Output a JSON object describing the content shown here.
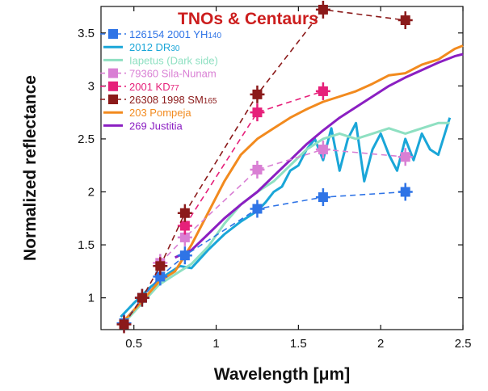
{
  "chart_data": {
    "type": "line",
    "title": "TNOs & Centaurs",
    "xlabel": "Wavelength [μm]",
    "ylabel": "Normalized reflectance",
    "xlim": [
      0.3,
      2.5
    ],
    "ylim": [
      0.7,
      3.75
    ],
    "xticks": [
      0.5,
      1,
      1.5,
      2,
      2.5
    ],
    "xtick_labels": [
      "0.5",
      "1",
      "1.5",
      "2",
      "2.5"
    ],
    "yticks": [
      1,
      1.5,
      2,
      2.5,
      3,
      3.5
    ],
    "ytick_labels": [
      "1",
      "1.5",
      "2",
      "2.5",
      "3",
      "3.5"
    ],
    "grid": false,
    "legend_position": "top-left",
    "series": [
      {
        "name": "126154 2001 YH140",
        "legend_main": "126154 2001 YH",
        "legend_sub": "140",
        "kind": "points",
        "marker": "square",
        "color": "#2f74e6",
        "dashed": true,
        "x": [
          0.44,
          0.55,
          0.66,
          0.81,
          1.25,
          1.65,
          2.15
        ],
        "y": [
          0.76,
          1.0,
          1.2,
          1.4,
          1.84,
          1.95,
          2.0
        ]
      },
      {
        "name": "2012 DR30",
        "legend_main": "2012 DR",
        "legend_sub": "30",
        "kind": "line",
        "color": "#1aa6d8",
        "dashed": false,
        "x": [
          0.42,
          0.5,
          0.6,
          0.7,
          0.78,
          0.85,
          0.95,
          1.05,
          1.15,
          1.25,
          1.3,
          1.35,
          1.4,
          1.45,
          1.5,
          1.55,
          1.6,
          1.65,
          1.7,
          1.75,
          1.8,
          1.85,
          1.9,
          1.95,
          2.0,
          2.05,
          2.1,
          2.15,
          2.2,
          2.25,
          2.3,
          2.35,
          2.4,
          2.42
        ],
        "y": [
          0.82,
          0.95,
          1.1,
          1.22,
          1.3,
          1.28,
          1.45,
          1.6,
          1.72,
          1.82,
          1.9,
          2.0,
          2.05,
          2.2,
          2.25,
          2.4,
          2.5,
          2.3,
          2.6,
          2.2,
          2.5,
          2.65,
          2.1,
          2.4,
          2.55,
          2.35,
          2.2,
          2.5,
          2.3,
          2.55,
          2.4,
          2.35,
          2.6,
          2.7
        ]
      },
      {
        "name": "Iapetus (Dark side)",
        "legend_main": "Iapetus (Dark side)",
        "legend_sub": "",
        "kind": "line",
        "color": "#8fe0c2",
        "dashed": false,
        "x": [
          0.45,
          0.55,
          0.65,
          0.75,
          0.85,
          0.95,
          1.05,
          1.15,
          1.25,
          1.35,
          1.45,
          1.55,
          1.65,
          1.75,
          1.85,
          1.95,
          2.05,
          2.15,
          2.25,
          2.35,
          2.42
        ],
        "y": [
          0.78,
          0.95,
          1.12,
          1.22,
          1.32,
          1.48,
          1.7,
          1.88,
          2.0,
          2.1,
          2.25,
          2.4,
          2.5,
          2.55,
          2.5,
          2.55,
          2.6,
          2.55,
          2.6,
          2.65,
          2.65
        ]
      },
      {
        "name": "79360 Sila-Nunam",
        "legend_main": "79360 Sila-Nunam",
        "legend_sub": "",
        "kind": "points",
        "marker": "square",
        "color": "#d97fd4",
        "dashed": true,
        "x": [
          0.66,
          0.81,
          1.25,
          1.65,
          2.15
        ],
        "y": [
          1.33,
          1.57,
          2.21,
          2.4,
          2.33
        ]
      },
      {
        "name": "2001 KD77",
        "legend_main": "2001 KD",
        "legend_sub": "77",
        "kind": "points",
        "marker": "square",
        "color": "#e6207a",
        "dashed": true,
        "x": [
          0.81,
          1.25,
          1.65
        ],
        "y": [
          1.68,
          2.75,
          2.95
        ]
      },
      {
        "name": "26308 1998 SM165",
        "legend_main": "26308 1998 SM",
        "legend_sub": "165",
        "kind": "points",
        "marker": "square",
        "color": "#8b1a1a",
        "dashed": true,
        "x": [
          0.44,
          0.55,
          0.66,
          0.81,
          1.25,
          1.65,
          2.15
        ],
        "y": [
          0.75,
          1.0,
          1.3,
          1.8,
          2.92,
          3.72,
          3.62
        ]
      },
      {
        "name": "203 Pompeja",
        "legend_main": "203 Pompeja",
        "legend_sub": "",
        "kind": "line",
        "color": "#f28a1e",
        "dashed": false,
        "x": [
          0.45,
          0.55,
          0.65,
          0.75,
          0.85,
          0.95,
          1.05,
          1.15,
          1.25,
          1.35,
          1.45,
          1.55,
          1.65,
          1.75,
          1.85,
          1.95,
          2.05,
          2.15,
          2.25,
          2.35,
          2.45,
          2.5
        ],
        "y": [
          0.8,
          0.97,
          1.15,
          1.25,
          1.5,
          1.8,
          2.1,
          2.35,
          2.5,
          2.6,
          2.7,
          2.78,
          2.85,
          2.9,
          2.95,
          3.02,
          3.1,
          3.12,
          3.2,
          3.25,
          3.35,
          3.38
        ]
      },
      {
        "name": "269 Justitia",
        "legend_main": "269 Justitia",
        "legend_sub": "",
        "kind": "line",
        "color": "#8b1fc2",
        "dashed": false,
        "x": [
          0.75,
          0.85,
          0.95,
          1.05,
          1.15,
          1.25,
          1.35,
          1.45,
          1.55,
          1.65,
          1.75,
          1.85,
          1.95,
          2.05,
          2.15,
          2.25,
          2.35,
          2.45,
          2.5
        ],
        "y": [
          1.38,
          1.45,
          1.6,
          1.75,
          1.88,
          2.0,
          2.15,
          2.3,
          2.45,
          2.58,
          2.7,
          2.8,
          2.9,
          3.0,
          3.08,
          3.15,
          3.22,
          3.28,
          3.3
        ]
      }
    ]
  }
}
